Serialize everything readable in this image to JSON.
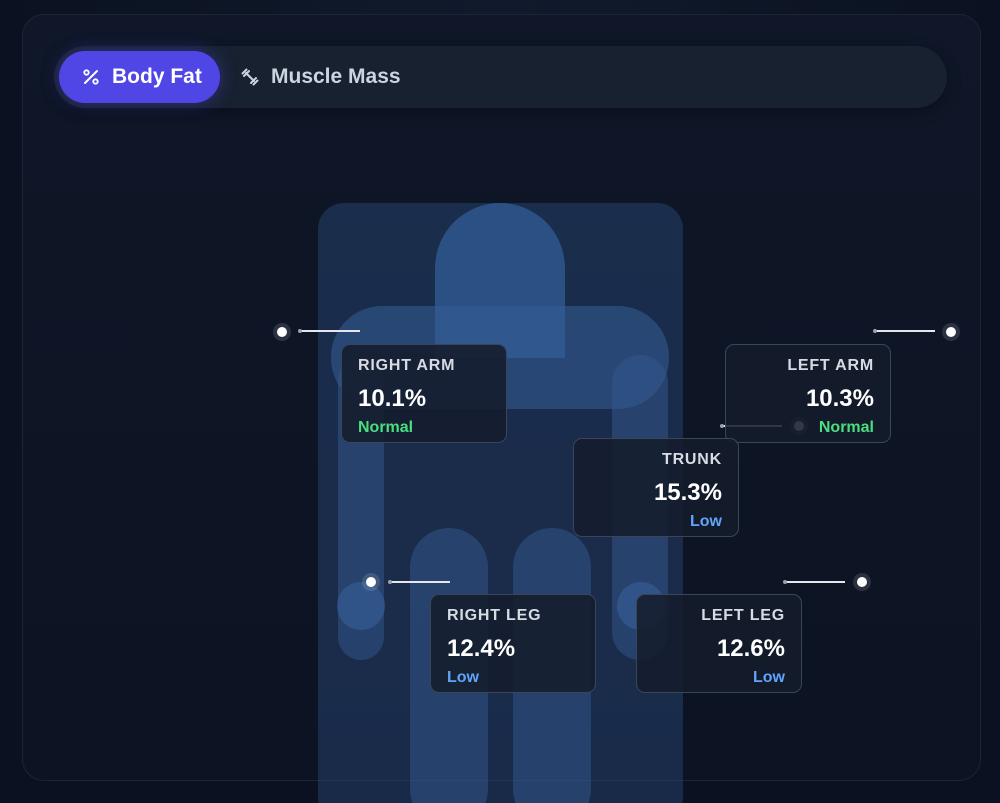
{
  "tabs": [
    {
      "label": "Body Fat",
      "icon": "percent-icon",
      "active": true
    },
    {
      "label": "Muscle Mass",
      "icon": "dumbbell-icon",
      "active": false
    }
  ],
  "colors": {
    "accent": "#4f46e5",
    "normal": "#4ade80",
    "low": "#60a5fa",
    "body": "#2f5a91"
  },
  "segments": {
    "right_arm": {
      "label": "RIGHT ARM",
      "value": "10.1%",
      "status": "Normal"
    },
    "left_arm": {
      "label": "LEFT ARM",
      "value": "10.3%",
      "status": "Normal"
    },
    "trunk": {
      "label": "TRUNK",
      "value": "15.3%",
      "status": "Low"
    },
    "right_leg": {
      "label": "RIGHT LEG",
      "value": "12.4%",
      "status": "Low"
    },
    "left_leg": {
      "label": "LEFT LEG",
      "value": "12.6%",
      "status": "Low"
    }
  }
}
